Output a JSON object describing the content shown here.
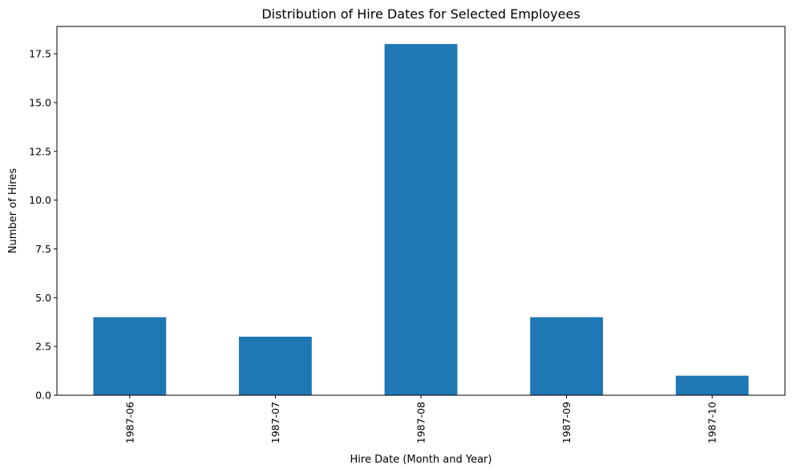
{
  "chart_data": {
    "type": "bar",
    "title": "Distribution of Hire Dates for Selected Employees",
    "xlabel": "Hire Date (Month and Year)",
    "ylabel": "Number of Hires",
    "categories": [
      "1987-06",
      "1987-07",
      "1987-08",
      "1987-09",
      "1987-10"
    ],
    "values": [
      4,
      3,
      18,
      4,
      1
    ],
    "ylim": [
      0,
      18.9
    ],
    "yticks": [
      0,
      2.5,
      5,
      7.5,
      10,
      12.5,
      15,
      17.5
    ],
    "ytick_labels": [
      "0.0",
      "2.5",
      "5.0",
      "7.5",
      "10.0",
      "12.5",
      "15.0",
      "17.5"
    ],
    "bar_color": "#1f77b4",
    "grid": false,
    "legend": false
  }
}
